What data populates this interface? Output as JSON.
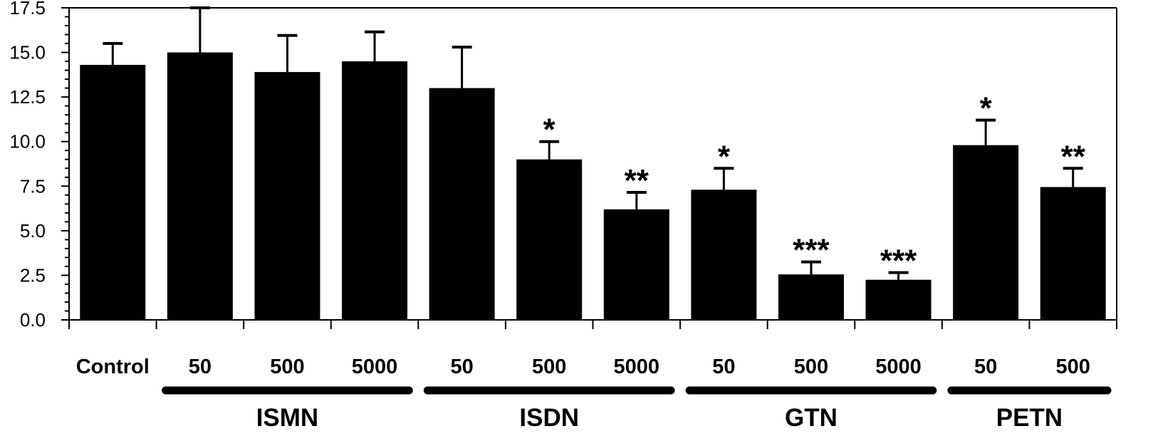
{
  "chart_data": {
    "type": "bar",
    "title": "",
    "xlabel": "",
    "ylabel": "",
    "ylim": [
      0,
      17.5
    ],
    "yticks": [
      "0.0",
      "2.5",
      "5.0",
      "7.5",
      "10.0",
      "12.5",
      "15.0",
      "17.5"
    ],
    "grid": false,
    "legend": "none",
    "bar_color": "#000000",
    "categories": [
      "Control",
      "50",
      "500",
      "5000",
      "50",
      "500",
      "5000",
      "50",
      "500",
      "5000",
      "50",
      "500"
    ],
    "values": [
      14.3,
      15.0,
      13.9,
      14.5,
      13.0,
      9.0,
      6.2,
      7.3,
      2.55,
      2.25,
      9.8,
      7.45
    ],
    "errors": [
      1.2,
      2.5,
      2.05,
      1.65,
      2.3,
      1.0,
      0.95,
      1.2,
      0.7,
      0.4,
      1.4,
      1.05
    ],
    "significance": [
      "",
      "",
      "",
      "",
      "",
      "*",
      "**",
      "*",
      "***",
      "***",
      "*",
      "**"
    ],
    "groups": [
      {
        "name": "ISMN",
        "members": [
          1,
          2,
          3
        ]
      },
      {
        "name": "ISDN",
        "members": [
          4,
          5,
          6
        ]
      },
      {
        "name": "GTN",
        "members": [
          7,
          8,
          9
        ]
      },
      {
        "name": "PETN",
        "members": [
          10,
          11
        ]
      }
    ]
  }
}
